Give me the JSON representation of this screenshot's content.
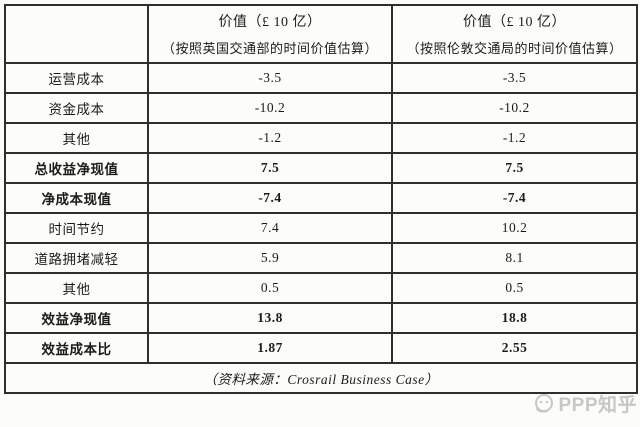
{
  "table": {
    "columns": [
      {
        "title": "",
        "subtitle": ""
      },
      {
        "title": "价值（£ 10 亿）",
        "subtitle": "（按照英国交通部的时间价值估算）"
      },
      {
        "title": "价值（£ 10 亿）",
        "subtitle": "（按照伦敦交通局的时间价值估算）"
      }
    ],
    "rows": [
      {
        "label": "运营成本",
        "v1": "-3.5",
        "v2": "-3.5",
        "bold": false
      },
      {
        "label": "资金成本",
        "v1": "-10.2",
        "v2": "-10.2",
        "bold": false
      },
      {
        "label": "其他",
        "v1": "-1.2",
        "v2": "-1.2",
        "bold": false
      },
      {
        "label": "总收益净现值",
        "v1": "7.5",
        "v2": "7.5",
        "bold": true
      },
      {
        "label": "净成本现值",
        "v1": "-7.4",
        "v2": "-7.4",
        "bold": true
      },
      {
        "label": "时间节约",
        "v1": "7.4",
        "v2": "10.2",
        "bold": false
      },
      {
        "label": "道路拥堵减轻",
        "v1": "5.9",
        "v2": "8.1",
        "bold": false
      },
      {
        "label": "其他",
        "v1": "0.5",
        "v2": "0.5",
        "bold": false
      },
      {
        "label": "效益净现值",
        "v1": "13.8",
        "v2": "18.8",
        "bold": true
      },
      {
        "label": "效益成本比",
        "v1": "1.87",
        "v2": "2.55",
        "bold": true
      }
    ],
    "source_note": "（资料来源：Crosrail Business Case）"
  },
  "watermark": {
    "text": "PPP知乎",
    "icon": "speech-bubble-logo"
  },
  "colors": {
    "border": "#2e2e2e",
    "text": "#1b1b1b",
    "watermark": "#c2c2c2",
    "background": "#fcfcfb"
  }
}
